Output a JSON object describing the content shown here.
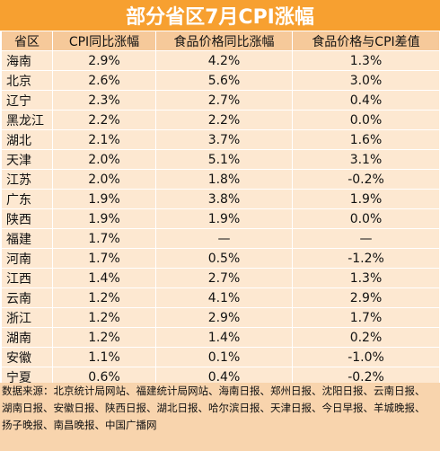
{
  "title": "部分省区7月CPI涨幅",
  "table": {
    "headers": [
      "省区",
      "CPI同比涨幅",
      "食品价格同比涨幅",
      "食品价格与CPI差值"
    ],
    "rows": [
      [
        "海南",
        "2.9%",
        "4.2%",
        "1.3%"
      ],
      [
        "北京",
        "2.6%",
        "5.6%",
        "3.0%"
      ],
      [
        "辽宁",
        "2.3%",
        "2.7%",
        "0.4%"
      ],
      [
        "黑龙江",
        "2.2%",
        "2.2%",
        "0.0%"
      ],
      [
        "湖北",
        "2.1%",
        "3.7%",
        "1.6%"
      ],
      [
        "天津",
        "2.0%",
        "5.1%",
        "3.1%"
      ],
      [
        "江苏",
        "2.0%",
        "1.8%",
        "-0.2%"
      ],
      [
        "广东",
        "1.9%",
        "3.8%",
        "1.9%"
      ],
      [
        "陕西",
        "1.9%",
        "1.9%",
        "0.0%"
      ],
      [
        "福建",
        "1.7%",
        "—",
        "—"
      ],
      [
        "河南",
        "1.7%",
        "0.5%",
        "-1.2%"
      ],
      [
        "江西",
        "1.4%",
        "2.7%",
        "1.3%"
      ],
      [
        "云南",
        "1.2%",
        "4.1%",
        "2.9%"
      ],
      [
        "浙江",
        "1.2%",
        "2.9%",
        "1.7%"
      ],
      [
        "湖南",
        "1.2%",
        "1.4%",
        "0.2%"
      ],
      [
        "安徽",
        "1.1%",
        "0.1%",
        "-1.0%"
      ],
      [
        "宁夏",
        "0.6%",
        "0.4%",
        "-0.2%"
      ]
    ]
  },
  "footer": {
    "source_lines": [
      "数据来源：北京统计局网站、福建统计局网站、海南日报、郑州日报、沈阳日报、云南日报、",
      "湖南日报、安徽日报、陕西日报、湖北日报、哈尔滨日报、天津日报、今日早报、羊城晚报、",
      "扬子晚报、南昌晚报、中国广播网"
    ]
  },
  "colors": {
    "title_bg": "#f7a030",
    "header_bg": "#f6c99a",
    "cell_bg": "#fde8d1",
    "footer_bg": "#f8d4ad"
  }
}
